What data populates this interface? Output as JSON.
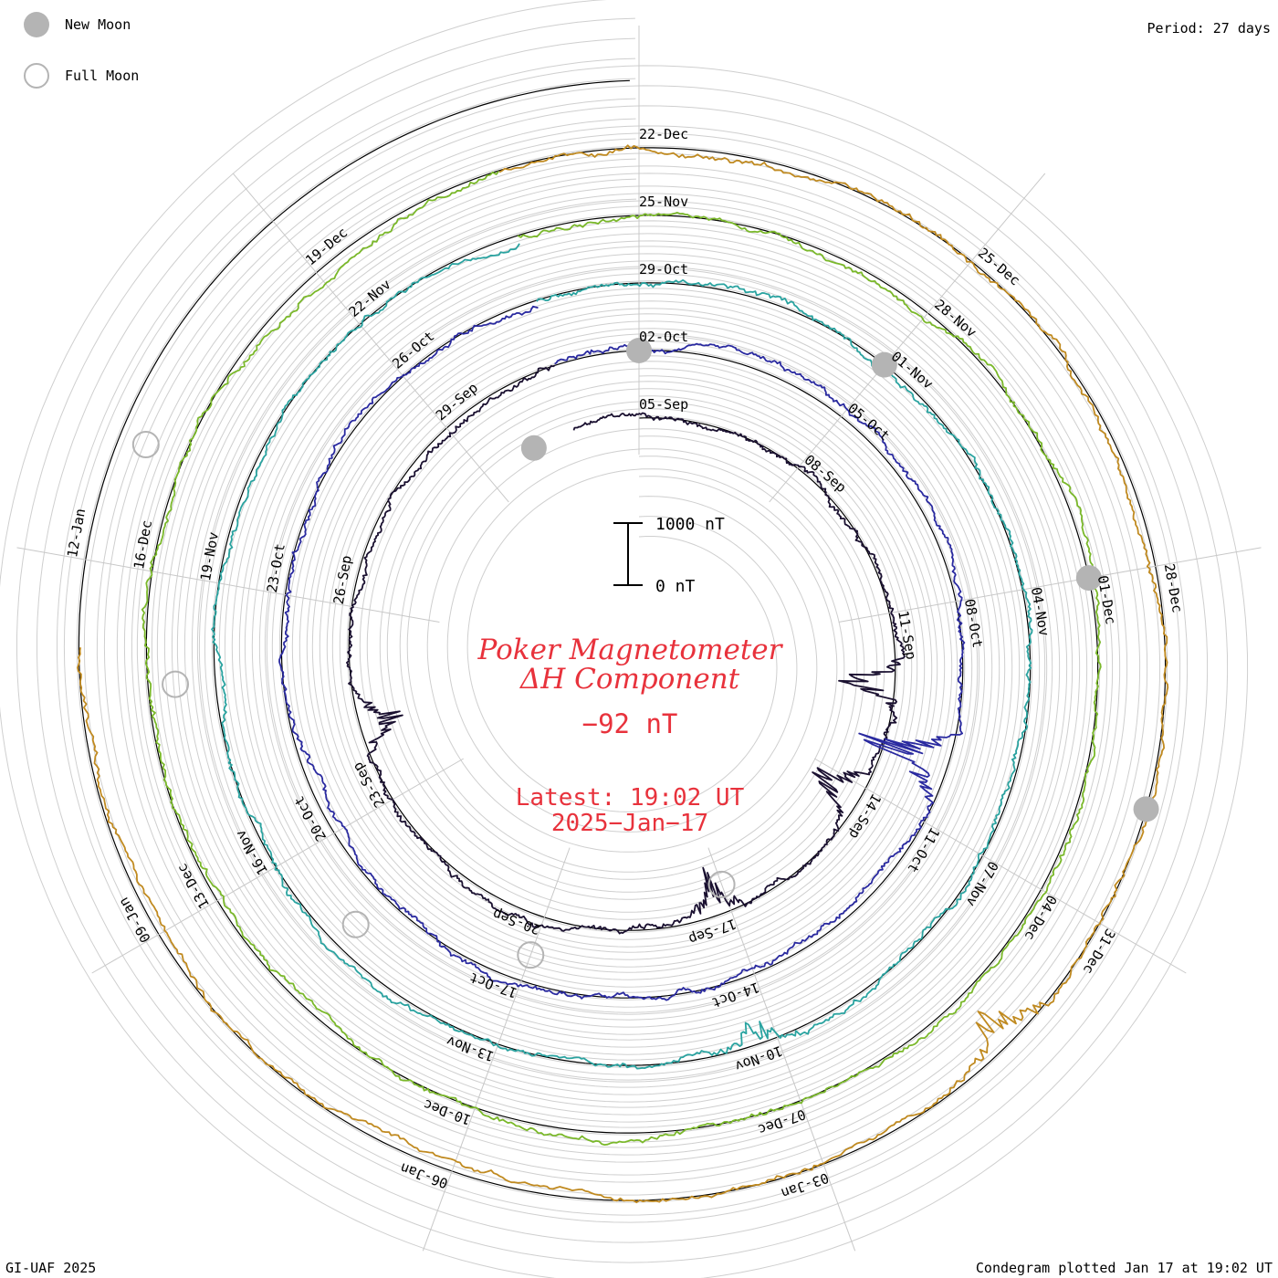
{
  "corners": {
    "period": "Period: 27 days",
    "credit": "GI-UAF 2025",
    "plotted": "Condegram plotted Jan 17 at 19:02 UT"
  },
  "legend": {
    "new_moon_label": "New Moon",
    "full_moon_label": "Full Moon",
    "new_moon_color": "#b4b4b4",
    "full_moon_color": "#b4b4b4"
  },
  "scale_bar": {
    "top_label": "1000 nT",
    "bottom_label": "0 nT"
  },
  "title": {
    "line1": "Poker Magnetometer",
    "line2": "ΔH Component",
    "current_value": "−92 nT",
    "latest_time": "Latest: 19:02 UT",
    "latest_date": "2025−Jan−17"
  },
  "chart_data": {
    "type": "line",
    "style": "condegram spiral (one turn per 27-day period, inner to outer, latest on outer turn)",
    "period_days": 27,
    "units": "nT",
    "baseline_nT": 0,
    "turns": [
      {
        "color": "#1a1030",
        "date_labels": [
          "05-Sep",
          "08-Sep",
          "11-Sep",
          "14-Sep",
          "17-Sep",
          "20-Sep",
          "23-Sep",
          "26-Sep",
          "29-Sep"
        ]
      },
      {
        "color": "#2a2aa0",
        "date_labels": [
          "02-Oct",
          "05-Oct",
          "08-Oct",
          "11-Oct",
          "14-Oct",
          "17-Oct",
          "20-Oct",
          "23-Oct",
          "26-Oct"
        ]
      },
      {
        "color": "#2aa3a0",
        "date_labels": [
          "29-Oct",
          "01-Nov",
          "04-Nov",
          "07-Nov",
          "10-Nov",
          "13-Nov",
          "16-Nov",
          "19-Nov",
          "22-Nov"
        ]
      },
      {
        "color": "#7ab82a",
        "date_labels": [
          "25-Nov",
          "28-Nov",
          "01-Dec",
          "04-Dec",
          "07-Dec",
          "10-Dec",
          "13-Dec",
          "16-Dec",
          "19-Dec"
        ]
      },
      {
        "color": "#c08a20",
        "date_labels": [
          "22-Dec",
          "25-Dec",
          "28-Dec",
          "31-Dec",
          "03-Jan",
          "06-Jan",
          "09-Jan",
          "12-Jan"
        ]
      }
    ],
    "disturbances": [
      {
        "label": "12-Sep",
        "amplitude_nT": 1100
      },
      {
        "label": "14-Sep",
        "amplitude_nT": 900
      },
      {
        "label": "17-Sep",
        "amplitude_nT": 700
      },
      {
        "label": "24-Sep",
        "amplitude_nT": 700
      },
      {
        "label": "10-Oct",
        "amplitude_nT": 1300
      },
      {
        "label": "10-Nov",
        "amplitude_nT": 450
      },
      {
        "label": "01-Jan",
        "amplitude_nT": 700
      }
    ],
    "new_moons": [
      "03-Sep",
      "02-Oct",
      "01-Nov",
      "01-Dec",
      "30-Dec"
    ],
    "full_moons": [
      "17-Sep",
      "17-Oct",
      "15-Nov",
      "15-Dec",
      "13-Jan"
    ],
    "latest_value_nT": -92
  }
}
